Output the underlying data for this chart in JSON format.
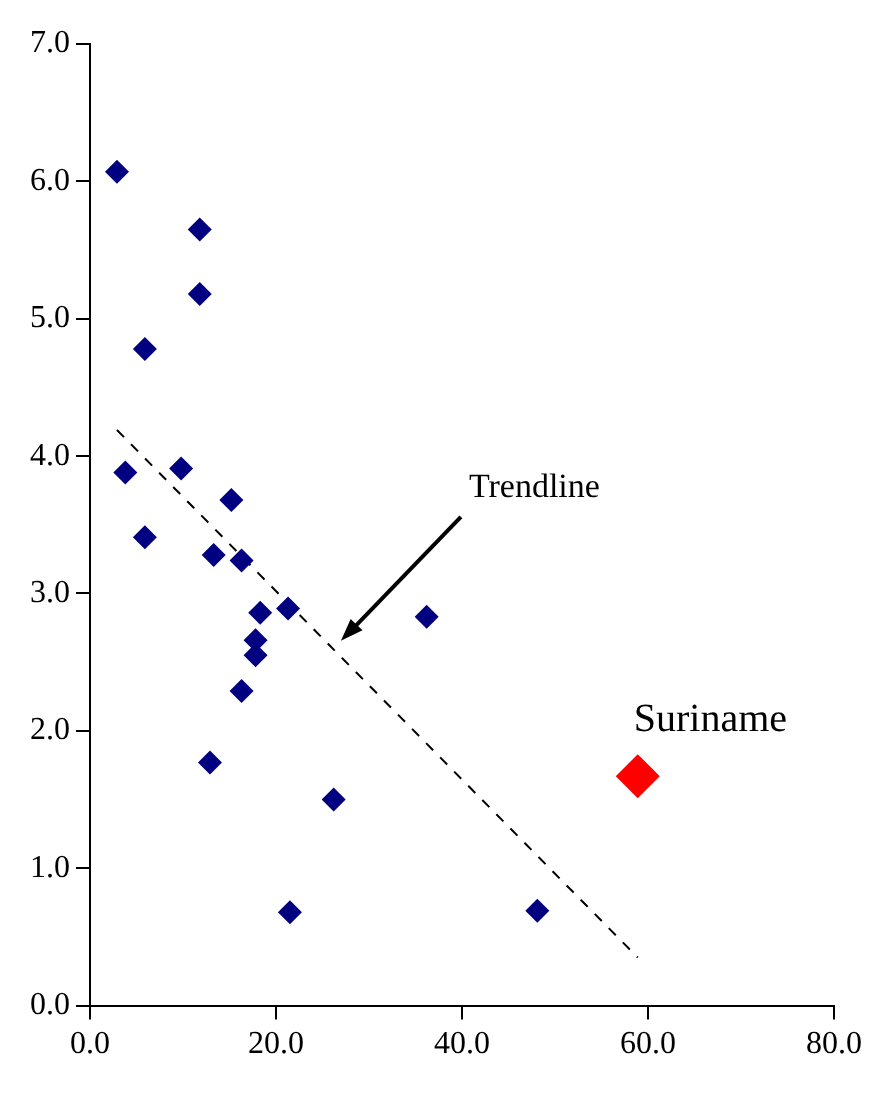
{
  "chart_data": {
    "type": "scatter",
    "marker": "diamond",
    "grid": false,
    "legend": false,
    "xlim": [
      0,
      80
    ],
    "xticks": [
      {
        "value": 0,
        "label": "0.0"
      },
      {
        "value": 20,
        "label": "20.0"
      },
      {
        "value": 40,
        "label": "40.0"
      },
      {
        "value": 60,
        "label": "60.0"
      },
      {
        "value": 80,
        "label": "80.0"
      }
    ],
    "ylim": [
      0,
      7
    ],
    "yticks": [
      {
        "value": 0,
        "label": "0.0"
      },
      {
        "value": 1,
        "label": "1.0"
      },
      {
        "value": 2,
        "label": "2.0"
      },
      {
        "value": 3,
        "label": "3.0"
      },
      {
        "value": 4,
        "label": "4.0"
      },
      {
        "value": 5,
        "label": "5.0"
      },
      {
        "value": 6,
        "label": "6.0"
      },
      {
        "value": 7,
        "label": "7.0"
      }
    ],
    "series": [
      {
        "color": "#000080",
        "x": [
          2.9,
          11.8,
          11.8,
          5.9,
          3.8,
          9.8,
          15.2,
          5.9,
          13.3,
          16.3,
          18.3,
          21.3,
          36.2,
          17.8,
          17.8,
          16.3,
          12.9,
          26.2,
          21.5,
          48.1
        ],
        "values": [
          6.07,
          5.65,
          5.18,
          4.78,
          3.88,
          3.91,
          3.68,
          3.41,
          3.28,
          3.24,
          2.86,
          2.89,
          2.83,
          2.66,
          2.55,
          2.29,
          1.77,
          1.5,
          0.68,
          0.69
        ]
      },
      {
        "name": "Suriname",
        "color": "#ff0000",
        "x": [
          58.9
        ],
        "values": [
          1.67
        ]
      },
      {
        "type": "line",
        "color": "#000000",
        "line_style": "dashed",
        "marker": "none",
        "x": [
          2.9,
          58.9
        ],
        "values": [
          4.19,
          0.35
        ]
      }
    ],
    "annotations": [
      "Trendline"
    ]
  }
}
